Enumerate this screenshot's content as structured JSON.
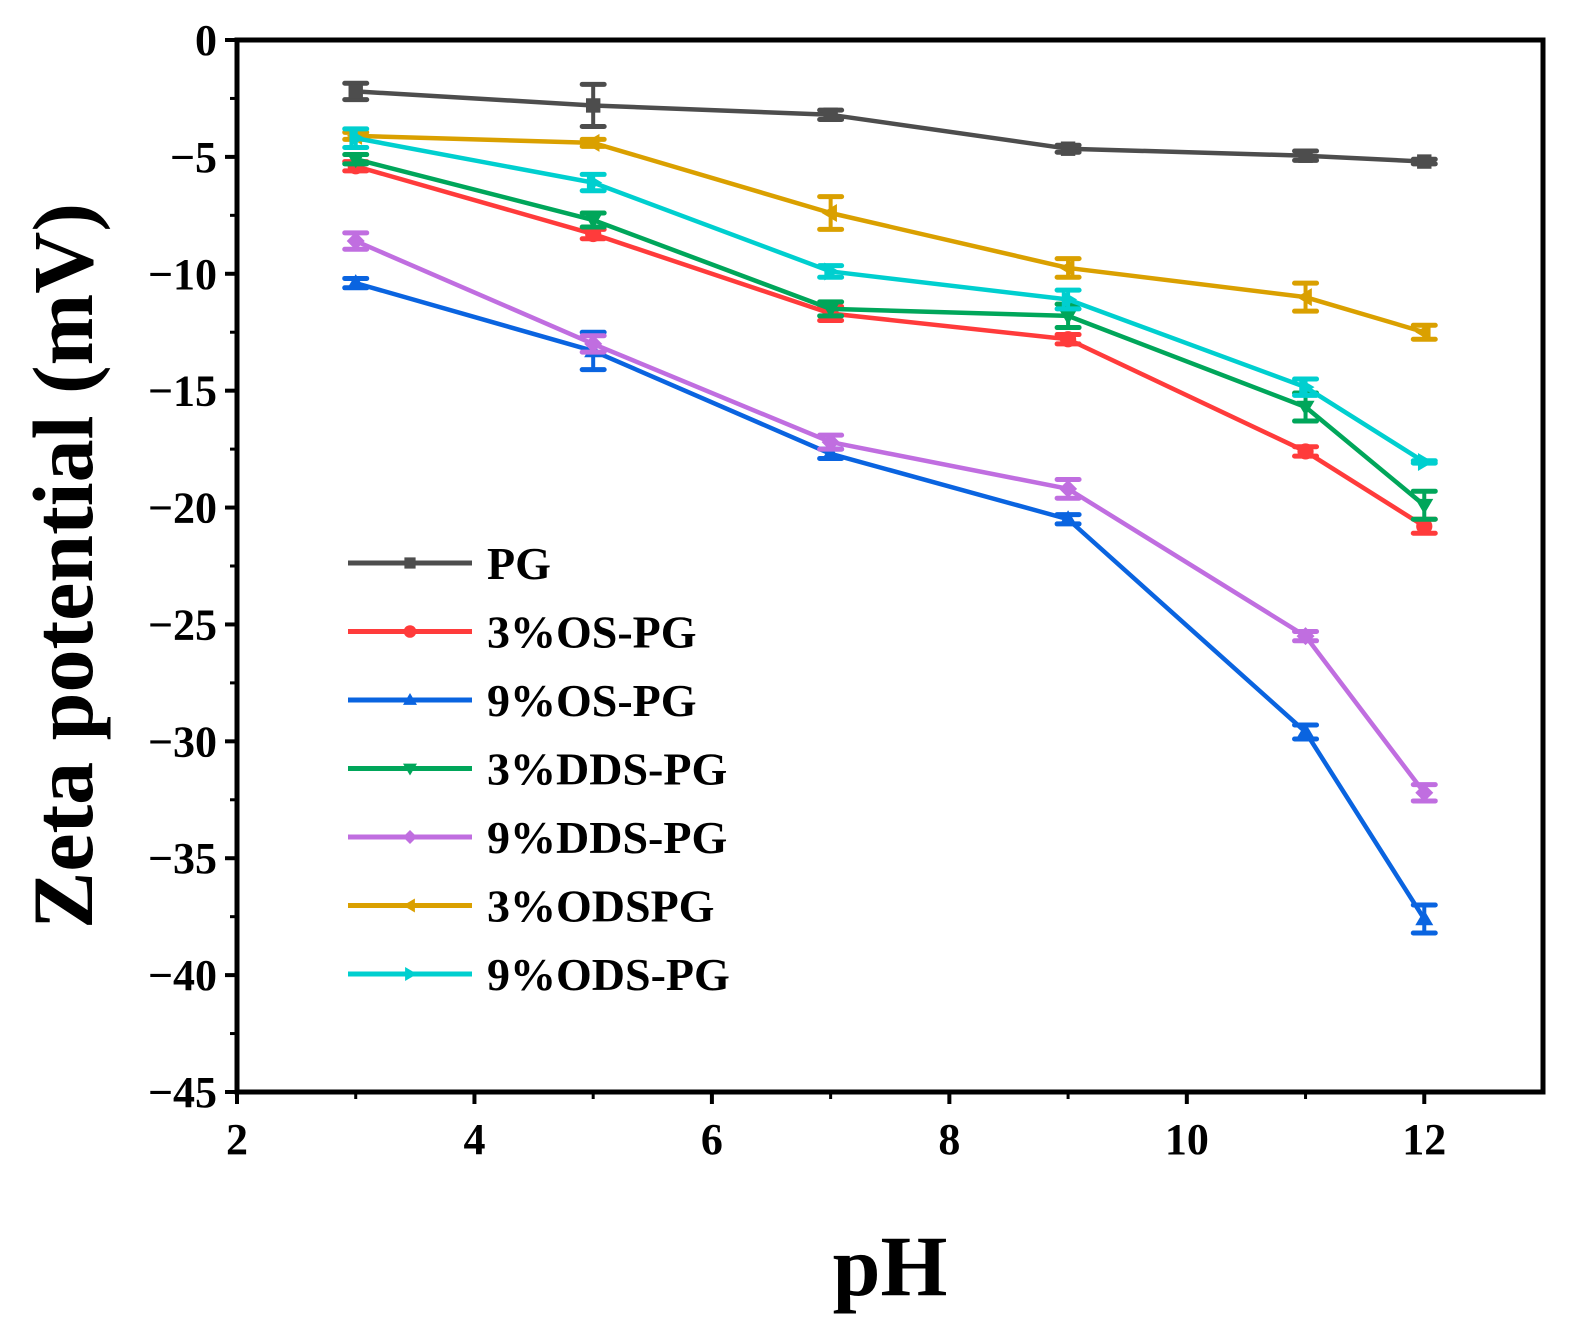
{
  "chart_data": {
    "type": "line",
    "title": "",
    "xlabel": "pH",
    "ylabel": "Zeta potential (mV)",
    "xlim": [
      2,
      13
    ],
    "ylim": [
      -45,
      0
    ],
    "xticks": [
      2,
      4,
      6,
      8,
      10,
      12
    ],
    "xtick_labels": [
      "2",
      "4",
      "6",
      "8",
      "10",
      "12"
    ],
    "yticks": [
      0,
      -5,
      -10,
      -15,
      -20,
      -25,
      -30,
      -35,
      -40,
      -45
    ],
    "ytick_labels": [
      "0",
      "−5",
      "−10",
      "−15",
      "−20",
      "−25",
      "−30",
      "−35",
      "−40",
      "−45"
    ],
    "grid": false,
    "legend_position": "left-center",
    "x": [
      3,
      5,
      7,
      9,
      11,
      12
    ],
    "series": [
      {
        "name": "PG",
        "color": "#4d4d4d",
        "marker": "square",
        "values": [
          -2.2,
          -2.8,
          -3.2,
          -4.65,
          -4.95,
          -5.2
        ],
        "errors": [
          0.35,
          0.9,
          0.2,
          0.15,
          0.2,
          0.1
        ]
      },
      {
        "name": "3%OS-PG",
        "color": "#ff3b3b",
        "marker": "circle",
        "values": [
          -5.4,
          -8.3,
          -11.7,
          -12.8,
          -17.6,
          -20.8
        ],
        "errors": [
          0.2,
          0.2,
          0.3,
          0.2,
          0.2,
          0.3
        ]
      },
      {
        "name": "9%OS-PG",
        "color": "#0a64e0",
        "marker": "triangle-up",
        "values": [
          -10.4,
          -13.3,
          -17.7,
          -20.5,
          -29.6,
          -37.6
        ],
        "errors": [
          0.2,
          0.8,
          0.2,
          0.2,
          0.3,
          0.6
        ]
      },
      {
        "name": "3%DDS-PG",
        "color": "#00a65a",
        "marker": "triangle-down",
        "values": [
          -5.1,
          -7.7,
          -11.5,
          -11.8,
          -15.7,
          -19.9
        ],
        "errors": [
          0.2,
          0.3,
          0.3,
          0.5,
          0.6,
          0.6
        ]
      },
      {
        "name": "9%DDS-PG",
        "color": "#c06ee0",
        "marker": "diamond",
        "values": [
          -8.6,
          -13.0,
          -17.2,
          -19.2,
          -25.5,
          -32.2
        ],
        "errors": [
          0.35,
          0.35,
          0.3,
          0.4,
          0.2,
          0.35
        ]
      },
      {
        "name": "3%ODSPG",
        "color": "#daa000",
        "marker": "triangle-left",
        "values": [
          -4.1,
          -4.4,
          -7.4,
          -9.75,
          -11.0,
          -12.5
        ],
        "errors": [
          0.15,
          0.15,
          0.7,
          0.4,
          0.6,
          0.3
        ]
      },
      {
        "name": "9%ODS-PG",
        "color": "#00cfcf",
        "marker": "triangle-right",
        "values": [
          -4.2,
          -6.1,
          -9.9,
          -11.1,
          -14.85,
          -18.05
        ],
        "errors": [
          0.4,
          0.35,
          0.25,
          0.4,
          0.35,
          0.05
        ]
      }
    ]
  }
}
